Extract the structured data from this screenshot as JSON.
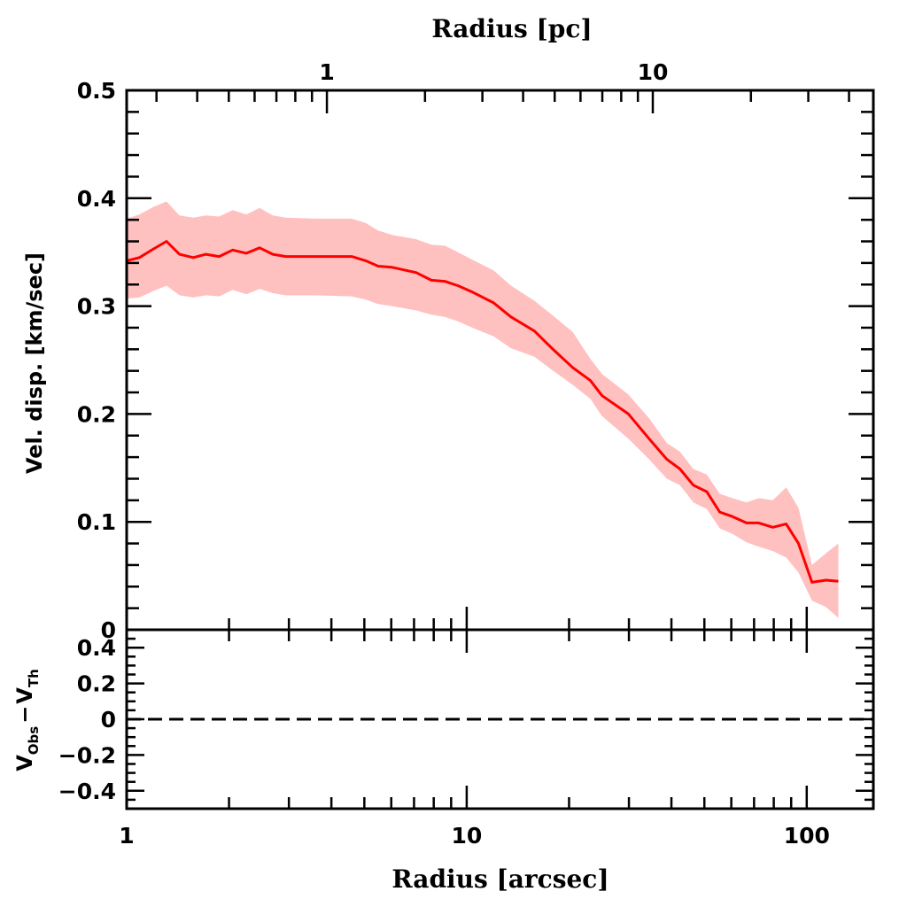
{
  "chart_data": [
    {
      "type": "line",
      "panel": "main",
      "title": "",
      "xlabel": "Radius [arcsec]",
      "x2label": "Radius [pc]",
      "ylabel": "Vel. disp. [km/sec]",
      "xscale": "log",
      "xlim": [
        1,
        157
      ],
      "x2scale": "log",
      "x2lim": [
        0.243,
        47.5
      ],
      "ylim": [
        0,
        0.5
      ],
      "xticks": [
        {
          "value": 1,
          "label": "1"
        },
        {
          "value": 10,
          "label": "10"
        },
        {
          "value": 100,
          "label": "100"
        }
      ],
      "x2ticks": [
        {
          "value": 1,
          "label": "1"
        },
        {
          "value": 10,
          "label": "10"
        }
      ],
      "yticks": [
        {
          "value": 0,
          "label": "0"
        },
        {
          "value": 0.1,
          "label": "0.1"
        },
        {
          "value": 0.2,
          "label": "0.2"
        },
        {
          "value": 0.3,
          "label": "0.3"
        },
        {
          "value": 0.4,
          "label": "0.4"
        },
        {
          "value": 0.5,
          "label": "0.5"
        }
      ],
      "grid": false,
      "series": [
        {
          "name": "velocity dispersion",
          "color": "#ff0000",
          "band_color": "#ffc0c0",
          "x": [
            1.0,
            1.09,
            1.2,
            1.31,
            1.43,
            1.57,
            1.71,
            1.87,
            2.05,
            2.25,
            2.46,
            2.69,
            2.94,
            3.61,
            4.59,
            5.05,
            5.49,
            6.04,
            7.11,
            7.87,
            8.62,
            9.42,
            10.4,
            12.0,
            13.5,
            15.8,
            17.8,
            20.5,
            23.1,
            25.0,
            29.9,
            34.4,
            38.8,
            42.4,
            46.4,
            50.8,
            55.5,
            60.4,
            66.5,
            72.3,
            79.5,
            87.0,
            94.6,
            103.6,
            114.0,
            123.9
          ],
          "y": [
            0.342,
            0.345,
            0.353,
            0.36,
            0.348,
            0.345,
            0.348,
            0.346,
            0.352,
            0.349,
            0.354,
            0.348,
            0.346,
            0.346,
            0.346,
            0.342,
            0.337,
            0.336,
            0.331,
            0.324,
            0.323,
            0.319,
            0.313,
            0.303,
            0.29,
            0.277,
            0.261,
            0.243,
            0.231,
            0.217,
            0.2,
            0.177,
            0.158,
            0.149,
            0.134,
            0.128,
            0.109,
            0.105,
            0.099,
            0.099,
            0.095,
            0.098,
            0.08,
            0.044,
            0.046,
            0.045
          ],
          "y_upper": [
            0.381,
            0.385,
            0.392,
            0.397,
            0.384,
            0.382,
            0.384,
            0.383,
            0.389,
            0.385,
            0.391,
            0.384,
            0.382,
            0.381,
            0.381,
            0.377,
            0.37,
            0.366,
            0.362,
            0.357,
            0.356,
            0.35,
            0.343,
            0.333,
            0.319,
            0.305,
            0.292,
            0.276,
            0.251,
            0.237,
            0.218,
            0.196,
            0.173,
            0.165,
            0.149,
            0.144,
            0.126,
            0.122,
            0.118,
            0.122,
            0.12,
            0.132,
            0.113,
            0.06,
            0.071,
            0.08
          ],
          "y_lower": [
            0.307,
            0.308,
            0.314,
            0.319,
            0.31,
            0.308,
            0.31,
            0.309,
            0.315,
            0.311,
            0.316,
            0.312,
            0.31,
            0.31,
            0.309,
            0.306,
            0.302,
            0.3,
            0.296,
            0.292,
            0.29,
            0.286,
            0.28,
            0.272,
            0.261,
            0.253,
            0.241,
            0.227,
            0.214,
            0.198,
            0.177,
            0.158,
            0.14,
            0.134,
            0.118,
            0.112,
            0.094,
            0.089,
            0.081,
            0.077,
            0.073,
            0.067,
            0.053,
            0.027,
            0.021,
            0.011
          ]
        }
      ]
    },
    {
      "type": "line",
      "panel": "residual",
      "xlabel": "Radius [arcsec]",
      "ylabel": "V_Obs - V_Th",
      "ylabel_parts": {
        "v1": "V",
        "sub1": "Obs",
        "minus": "−",
        "v2": "V",
        "sub2": "Th"
      },
      "xscale": "log",
      "xlim": [
        1,
        157
      ],
      "ylim": [
        -0.5,
        0.5
      ],
      "yticks": [
        {
          "value": 0.4,
          "label": "0.4"
        },
        {
          "value": 0.2,
          "label": "0.2"
        },
        {
          "value": 0,
          "label": "0"
        },
        {
          "value": -0.2,
          "label": "−0.2"
        },
        {
          "value": -0.4,
          "label": "−0.4"
        }
      ],
      "grid": false,
      "reference_line": {
        "y": 0,
        "style": "dashed",
        "color": "#000000"
      }
    }
  ]
}
